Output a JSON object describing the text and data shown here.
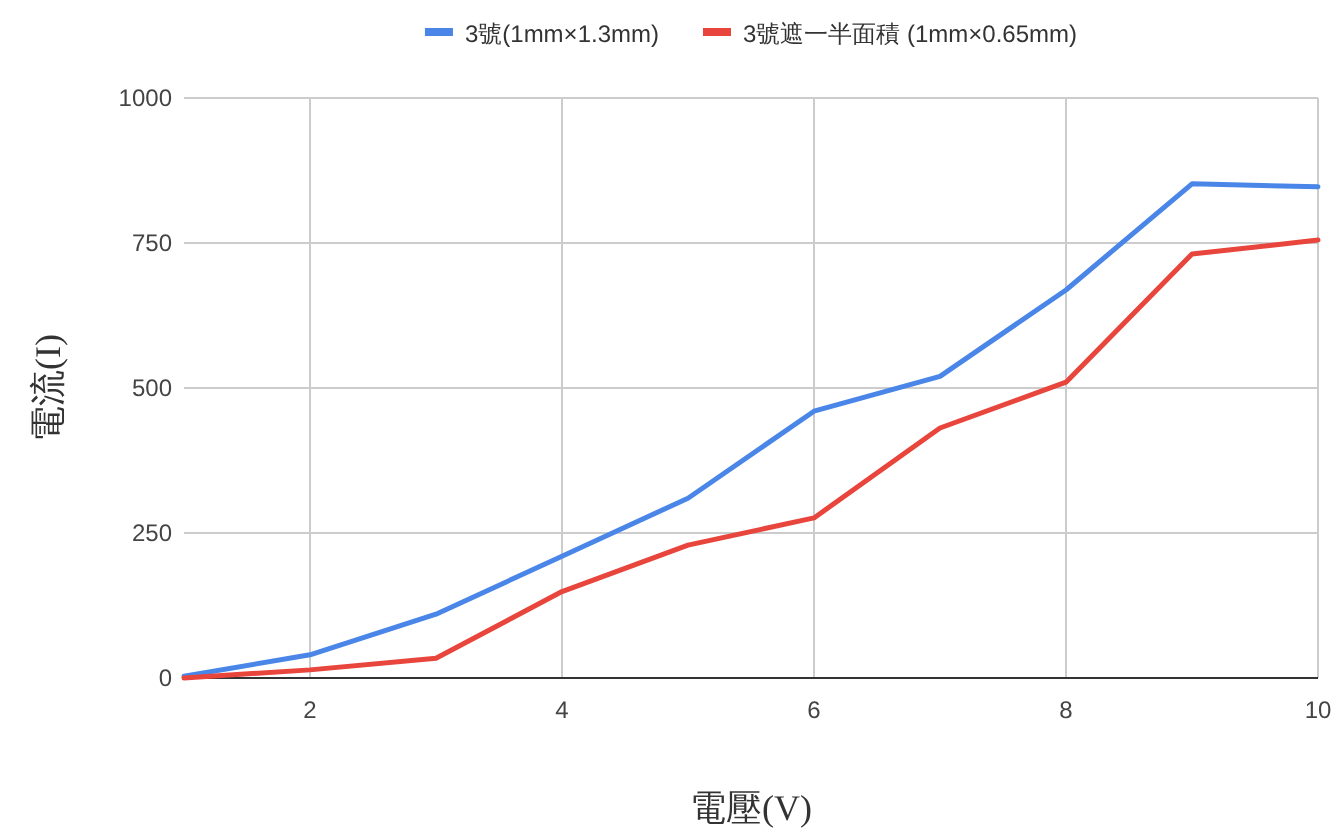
{
  "chart_data": {
    "type": "line",
    "xlabel": "電壓(V)",
    "ylabel": "電流(I)",
    "x": [
      1,
      2,
      3,
      4,
      5,
      6,
      7,
      8,
      9,
      10
    ],
    "series": [
      {
        "name": "3號(1mm×1.3mm)",
        "color": "#4a86e8",
        "values": [
          3,
          40,
          110,
          210,
          310,
          460,
          520,
          669,
          852,
          847
        ]
      },
      {
        "name": "3號遮一半面積 (1mm×0.65mm)",
        "color": "#e8453c",
        "values": [
          0,
          14,
          34,
          149,
          229,
          276,
          431,
          510,
          731,
          755
        ]
      }
    ],
    "xlim": [
      1,
      10
    ],
    "xticks": [
      2,
      4,
      6,
      8,
      10
    ],
    "ylim": [
      0,
      1000
    ],
    "yticks": [
      0,
      250,
      500,
      750,
      1000
    ],
    "grid": true,
    "legend": "top",
    "marker": "none",
    "line_style": "solid"
  }
}
